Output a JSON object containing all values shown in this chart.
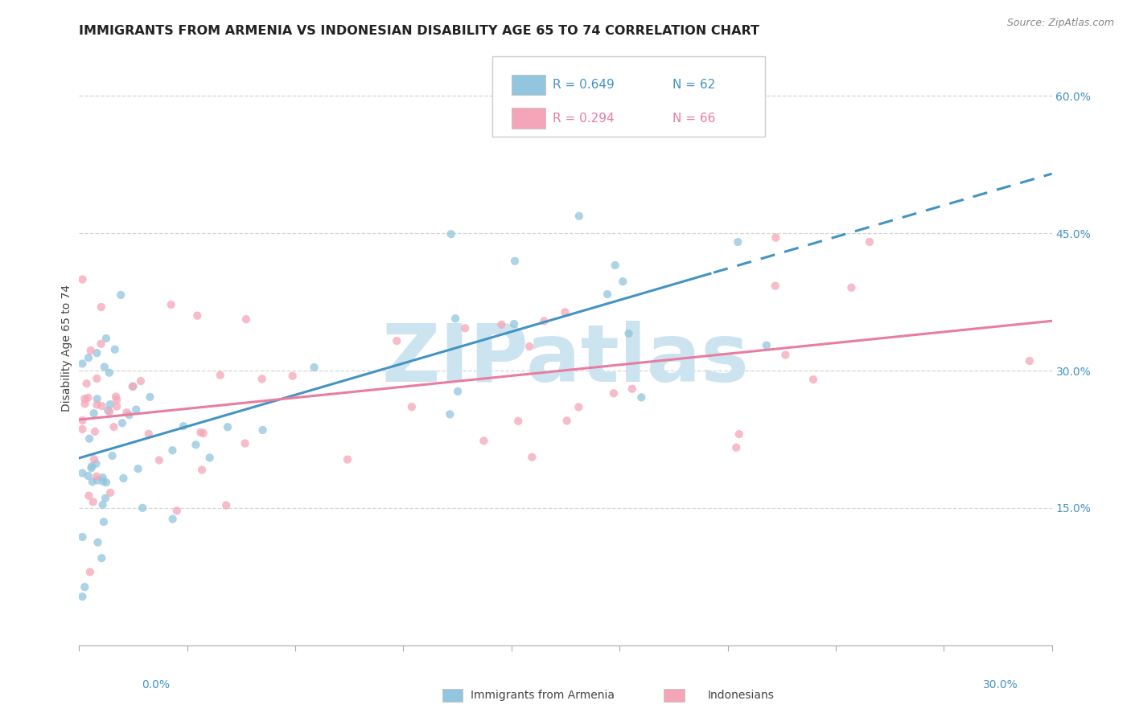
{
  "title": "IMMIGRANTS FROM ARMENIA VS INDONESIAN DISABILITY AGE 65 TO 74 CORRELATION CHART",
  "source": "Source: ZipAtlas.com",
  "ylabel": "Disability Age 65 to 74",
  "right_yticks": [
    0.15,
    0.3,
    0.45,
    0.6
  ],
  "right_yticklabels": [
    "15.0%",
    "30.0%",
    "45.0%",
    "60.0%"
  ],
  "legend_r1": "R = 0.649",
  "legend_n1": "N = 62",
  "legend_r2": "R = 0.294",
  "legend_n2": "N = 66",
  "legend_label1": "Immigrants from Armenia",
  "legend_label2": "Indonesians",
  "blue_color": "#92c5de",
  "pink_color": "#f4a6b8",
  "blue_line_color": "#4393c3",
  "pink_line_color": "#e87da0",
  "title_fontsize": 11.5,
  "axis_label_fontsize": 10,
  "tick_fontsize": 10,
  "xmin": 0.0,
  "xmax": 0.3,
  "ymin": 0.0,
  "ymax": 0.65,
  "watermark_text": "ZIPatlas",
  "watermark_color": "#cce4f0",
  "grid_color": "#d5d5d5"
}
